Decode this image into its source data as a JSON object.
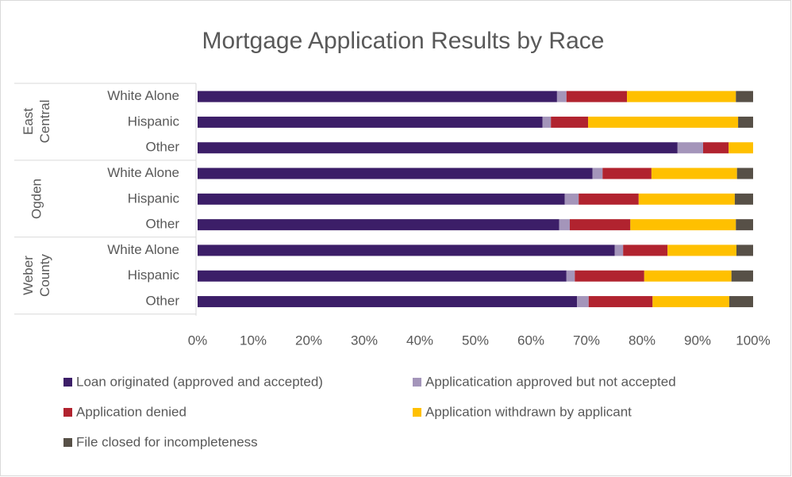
{
  "chart_data": {
    "type": "stacked_barh",
    "title": "Mortgage Application Results by Race",
    "groups": [
      {
        "name": "East Central",
        "categories": [
          "White Alone",
          "Hispanic",
          "Other"
        ]
      },
      {
        "name": "Ogden",
        "categories": [
          "White Alone",
          "Hispanic",
          "Other"
        ]
      },
      {
        "name": "Weber County",
        "categories": [
          "White Alone",
          "Hispanic",
          "Other"
        ]
      }
    ],
    "series": [
      {
        "name": "Loan originated (approved and accepted)",
        "color": "#3c1e68",
        "values": [
          64.7,
          62.1,
          86.4,
          71.1,
          66.1,
          65.1,
          75.1,
          66.4,
          68.3
        ]
      },
      {
        "name": "Applicatication approved but not accepted",
        "color": "#a495ba",
        "values": [
          1.7,
          1.5,
          4.6,
          1.8,
          2.5,
          1.9,
          1.5,
          1.5,
          2.1
        ]
      },
      {
        "name": "Application denied",
        "color": "#b1232f",
        "values": [
          10.9,
          6.7,
          4.6,
          8.8,
          10.8,
          10.9,
          8.0,
          12.5,
          11.5
        ]
      },
      {
        "name": "Application withdrawn by applicant",
        "color": "#ffc000",
        "values": [
          19.6,
          27.0,
          4.4,
          15.4,
          17.3,
          19.0,
          12.4,
          15.7,
          13.8
        ]
      },
      {
        "name": "File closed for incompleteness",
        "color": "#575047",
        "values": [
          3.1,
          2.7,
          0,
          2.9,
          3.3,
          3.1,
          3.0,
          3.9,
          4.3
        ]
      }
    ],
    "xlim": [
      0,
      100
    ],
    "xticks": [
      {
        "value": 0,
        "label": "0%"
      },
      {
        "value": 10,
        "label": "10%"
      },
      {
        "value": 20,
        "label": "20%"
      },
      {
        "value": 30,
        "label": "30%"
      },
      {
        "value": 40,
        "label": "40%"
      },
      {
        "value": 50,
        "label": "50%"
      },
      {
        "value": 60,
        "label": "60%"
      },
      {
        "value": 70,
        "label": "70%"
      },
      {
        "value": 80,
        "label": "80%"
      },
      {
        "value": 90,
        "label": "90%"
      },
      {
        "value": 100,
        "label": "100%"
      }
    ],
    "legend": "bottom"
  }
}
